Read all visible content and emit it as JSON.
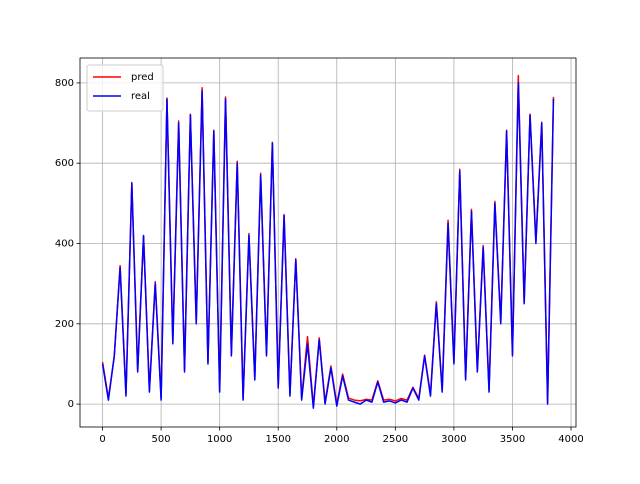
{
  "chart_data": {
    "type": "line",
    "x": [
      0,
      50,
      100,
      150,
      200,
      250,
      300,
      350,
      400,
      450,
      500,
      550,
      600,
      650,
      700,
      750,
      800,
      850,
      900,
      950,
      1000,
      1050,
      1100,
      1150,
      1200,
      1250,
      1300,
      1350,
      1400,
      1450,
      1500,
      1550,
      1600,
      1650,
      1700,
      1750,
      1800,
      1850,
      1900,
      1950,
      2000,
      2050,
      2100,
      2150,
      2200,
      2250,
      2300,
      2350,
      2400,
      2450,
      2500,
      2550,
      2600,
      2650,
      2700,
      2750,
      2800,
      2850,
      2900,
      2950,
      3000,
      3050,
      3100,
      3150,
      3200,
      3250,
      3300,
      3350,
      3400,
      3450,
      3500,
      3550,
      3600,
      3650,
      3700,
      3750,
      3800,
      3850
    ],
    "series": [
      {
        "name": "pred",
        "color": "#ff0000",
        "values": [
          105,
          15,
          118,
          345,
          25,
          552,
          85,
          418,
          35,
          305,
          15,
          762,
          155,
          705,
          85,
          722,
          205,
          788,
          105,
          682,
          35,
          765,
          125,
          605,
          15,
          425,
          65,
          575,
          125,
          652,
          45,
          472,
          25,
          362,
          15,
          168,
          -5,
          165,
          5,
          95,
          0,
          75,
          15,
          10,
          8,
          12,
          10,
          58,
          10,
          12,
          8,
          14,
          10,
          42,
          14,
          122,
          25,
          255,
          35,
          458,
          105,
          585,
          65,
          485,
          85,
          395,
          35,
          505,
          205,
          682,
          125,
          818,
          255,
          722,
          405,
          702,
          5,
          765
        ]
      },
      {
        "name": "real",
        "color": "#0000ff",
        "values": [
          100,
          10,
          120,
          340,
          20,
          550,
          80,
          420,
          30,
          300,
          10,
          760,
          150,
          700,
          80,
          720,
          200,
          780,
          100,
          680,
          30,
          760,
          120,
          600,
          10,
          420,
          60,
          570,
          120,
          650,
          40,
          470,
          20,
          360,
          10,
          150,
          -10,
          160,
          0,
          90,
          -5,
          70,
          10,
          5,
          0,
          10,
          5,
          55,
          5,
          8,
          3,
          10,
          5,
          40,
          10,
          120,
          20,
          250,
          30,
          450,
          100,
          580,
          60,
          480,
          80,
          390,
          30,
          500,
          200,
          680,
          120,
          800,
          250,
          720,
          400,
          700,
          0,
          760
        ]
      }
    ],
    "xlim": [
      -192.5,
      4042.5
    ],
    "ylim": [
      -57,
      862
    ],
    "xticks": [
      0,
      500,
      1000,
      1500,
      2000,
      2500,
      3000,
      3500,
      4000
    ],
    "yticks": [
      0,
      200,
      400,
      600,
      800
    ],
    "grid": true,
    "legend": "upper left"
  }
}
